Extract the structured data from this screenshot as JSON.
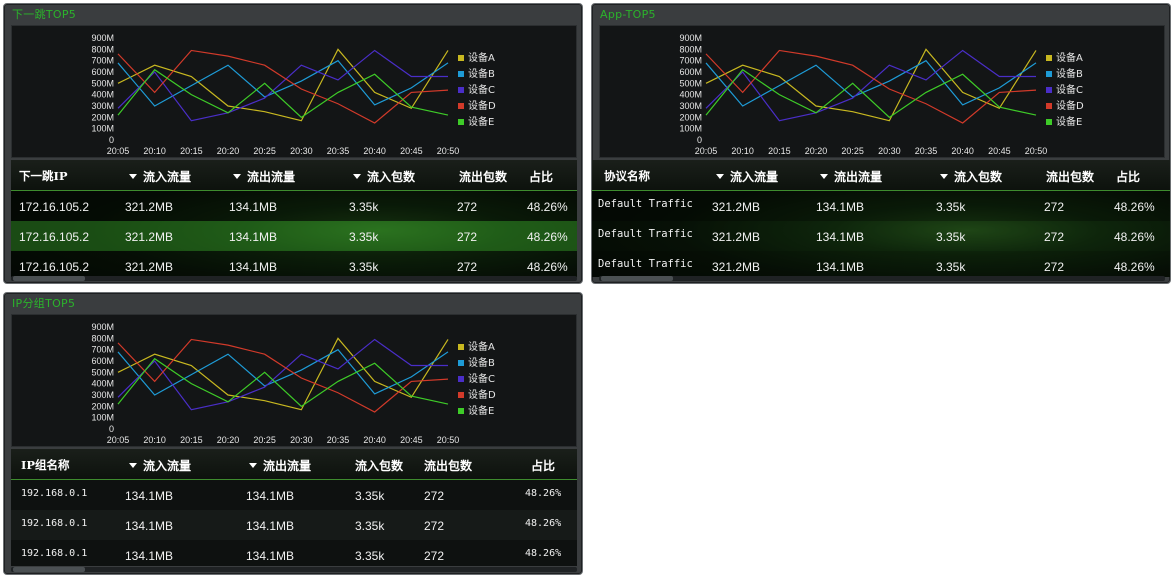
{
  "legend": [
    {
      "label": "设备A",
      "color": "#c8b820"
    },
    {
      "label": "设备B",
      "color": "#1e9bd6"
    },
    {
      "label": "设备C",
      "color": "#4a2ec8"
    },
    {
      "label": "设备D",
      "color": "#d23a2a"
    },
    {
      "label": "设备E",
      "color": "#3ecb28"
    }
  ],
  "chart": {
    "y_ticks": [
      "900M",
      "800M",
      "700M",
      "600M",
      "500M",
      "400M",
      "300M",
      "200M",
      "100M",
      "0"
    ],
    "x_ticks": [
      "20:05",
      "20:10",
      "20:15",
      "20:20",
      "20:25",
      "20:30",
      "20:35",
      "20:40",
      "20:45",
      "20:50"
    ]
  },
  "chart_data": {
    "type": "line",
    "x": [
      "20:05",
      "20:10",
      "20:15",
      "20:20",
      "20:25",
      "20:30",
      "20:35",
      "20:40",
      "20:45",
      "20:50"
    ],
    "ylim": [
      0,
      900
    ],
    "series": [
      {
        "name": "设备A",
        "values": [
          500,
          660,
          560,
          300,
          250,
          170,
          800,
          420,
          280,
          790
        ]
      },
      {
        "name": "设备B",
        "values": [
          680,
          300,
          480,
          660,
          380,
          520,
          700,
          310,
          460,
          680
        ]
      },
      {
        "name": "设备C",
        "values": [
          280,
          600,
          170,
          240,
          370,
          660,
          530,
          790,
          560,
          560
        ]
      },
      {
        "name": "设备D",
        "values": [
          760,
          420,
          790,
          740,
          660,
          450,
          320,
          150,
          420,
          440
        ]
      },
      {
        "name": "设备E",
        "values": [
          220,
          620,
          400,
          240,
          500,
          200,
          420,
          580,
          290,
          220
        ]
      }
    ]
  },
  "panels": [
    {
      "title": "下一跳TOP5",
      "headers": [
        "下一跳IP",
        "流入流量",
        "流出流量",
        "流入包数",
        "流出包数",
        "占比"
      ],
      "rows": [
        [
          "172.16.105.2",
          "321.2MB",
          "134.1MB",
          "3.35k",
          "272",
          "48.26%"
        ],
        [
          "172.16.105.2",
          "321.2MB",
          "134.1MB",
          "3.35k",
          "272",
          "48.26%"
        ],
        [
          "172.16.105.2",
          "321.2MB",
          "134.1MB",
          "3.35k",
          "272",
          "48.26%"
        ]
      ]
    },
    {
      "title": "App-TOP5",
      "headers": [
        "协议名称",
        "流入流量",
        "流出流量",
        "流入包数",
        "流出包数",
        "占比"
      ],
      "rows": [
        [
          "Default Traffic",
          "321.2MB",
          "134.1MB",
          "3.35k",
          "272",
          "48.26%"
        ],
        [
          "Default Traffic",
          "321.2MB",
          "134.1MB",
          "3.35k",
          "272",
          "48.26%"
        ],
        [
          "Default Traffic",
          "321.2MB",
          "134.1MB",
          "3.35k",
          "272",
          "48.26%"
        ]
      ]
    },
    {
      "title": "IP分组TOP5",
      "headers": [
        "IP组名称",
        "流入流量",
        "流出流量",
        "流入包数",
        "流出包数",
        "占比"
      ],
      "rows": [
        [
          "192.168.0.1",
          "134.1MB",
          "134.1MB",
          "3.35k",
          "272",
          "48.26%"
        ],
        [
          "192.168.0.1",
          "134.1MB",
          "134.1MB",
          "3.35k",
          "272",
          "48.26%"
        ],
        [
          "192.168.0.1",
          "134.1MB",
          "134.1MB",
          "3.35k",
          "272",
          "48.26%"
        ]
      ]
    }
  ]
}
